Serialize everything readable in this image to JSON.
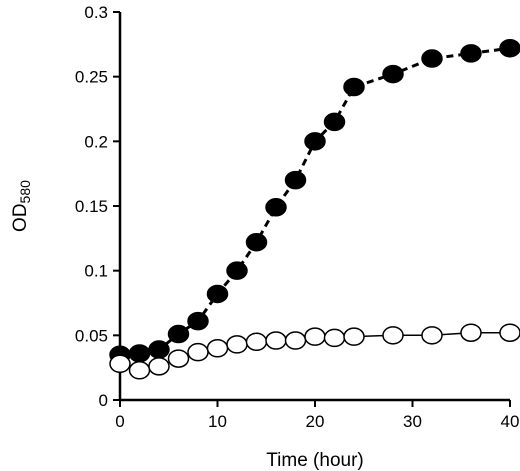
{
  "chart_data": {
    "type": "scatter",
    "xlabel": "Time (hour)",
    "ylabel_main": "OD",
    "ylabel_sub": "580",
    "xlim": [
      0,
      40
    ],
    "ylim": [
      0,
      0.3
    ],
    "xticks": [
      0,
      10,
      20,
      30,
      40
    ],
    "xtick_labels": [
      "0",
      "10",
      "20",
      "30",
      "40"
    ],
    "yticks": [
      0,
      0.05,
      0.1,
      0.15,
      0.2,
      0.25,
      0.3
    ],
    "ytick_labels": [
      "0",
      "0.05",
      "0.1",
      "0.15",
      "0.2",
      "0.25",
      "0.3"
    ],
    "grid": false,
    "series": [
      {
        "marker": "filled-circle",
        "line": "dashed",
        "color": "#000000",
        "x": [
          0,
          2,
          4,
          6,
          8,
          10,
          12,
          14,
          16,
          18,
          20,
          22,
          24,
          28,
          32,
          36,
          40
        ],
        "y": [
          0.035,
          0.036,
          0.039,
          0.051,
          0.061,
          0.082,
          0.1,
          0.122,
          0.149,
          0.17,
          0.2,
          0.215,
          0.242,
          0.252,
          0.264,
          0.268,
          0.272
        ]
      },
      {
        "marker": "open-circle",
        "line": "solid",
        "color": "#000000",
        "x": [
          0,
          2,
          4,
          6,
          8,
          10,
          12,
          14,
          16,
          18,
          20,
          22,
          24,
          28,
          32,
          36,
          40
        ],
        "y": [
          0.028,
          0.023,
          0.026,
          0.032,
          0.037,
          0.04,
          0.043,
          0.045,
          0.046,
          0.046,
          0.049,
          0.048,
          0.049,
          0.05,
          0.05,
          0.052,
          0.052
        ]
      }
    ]
  }
}
